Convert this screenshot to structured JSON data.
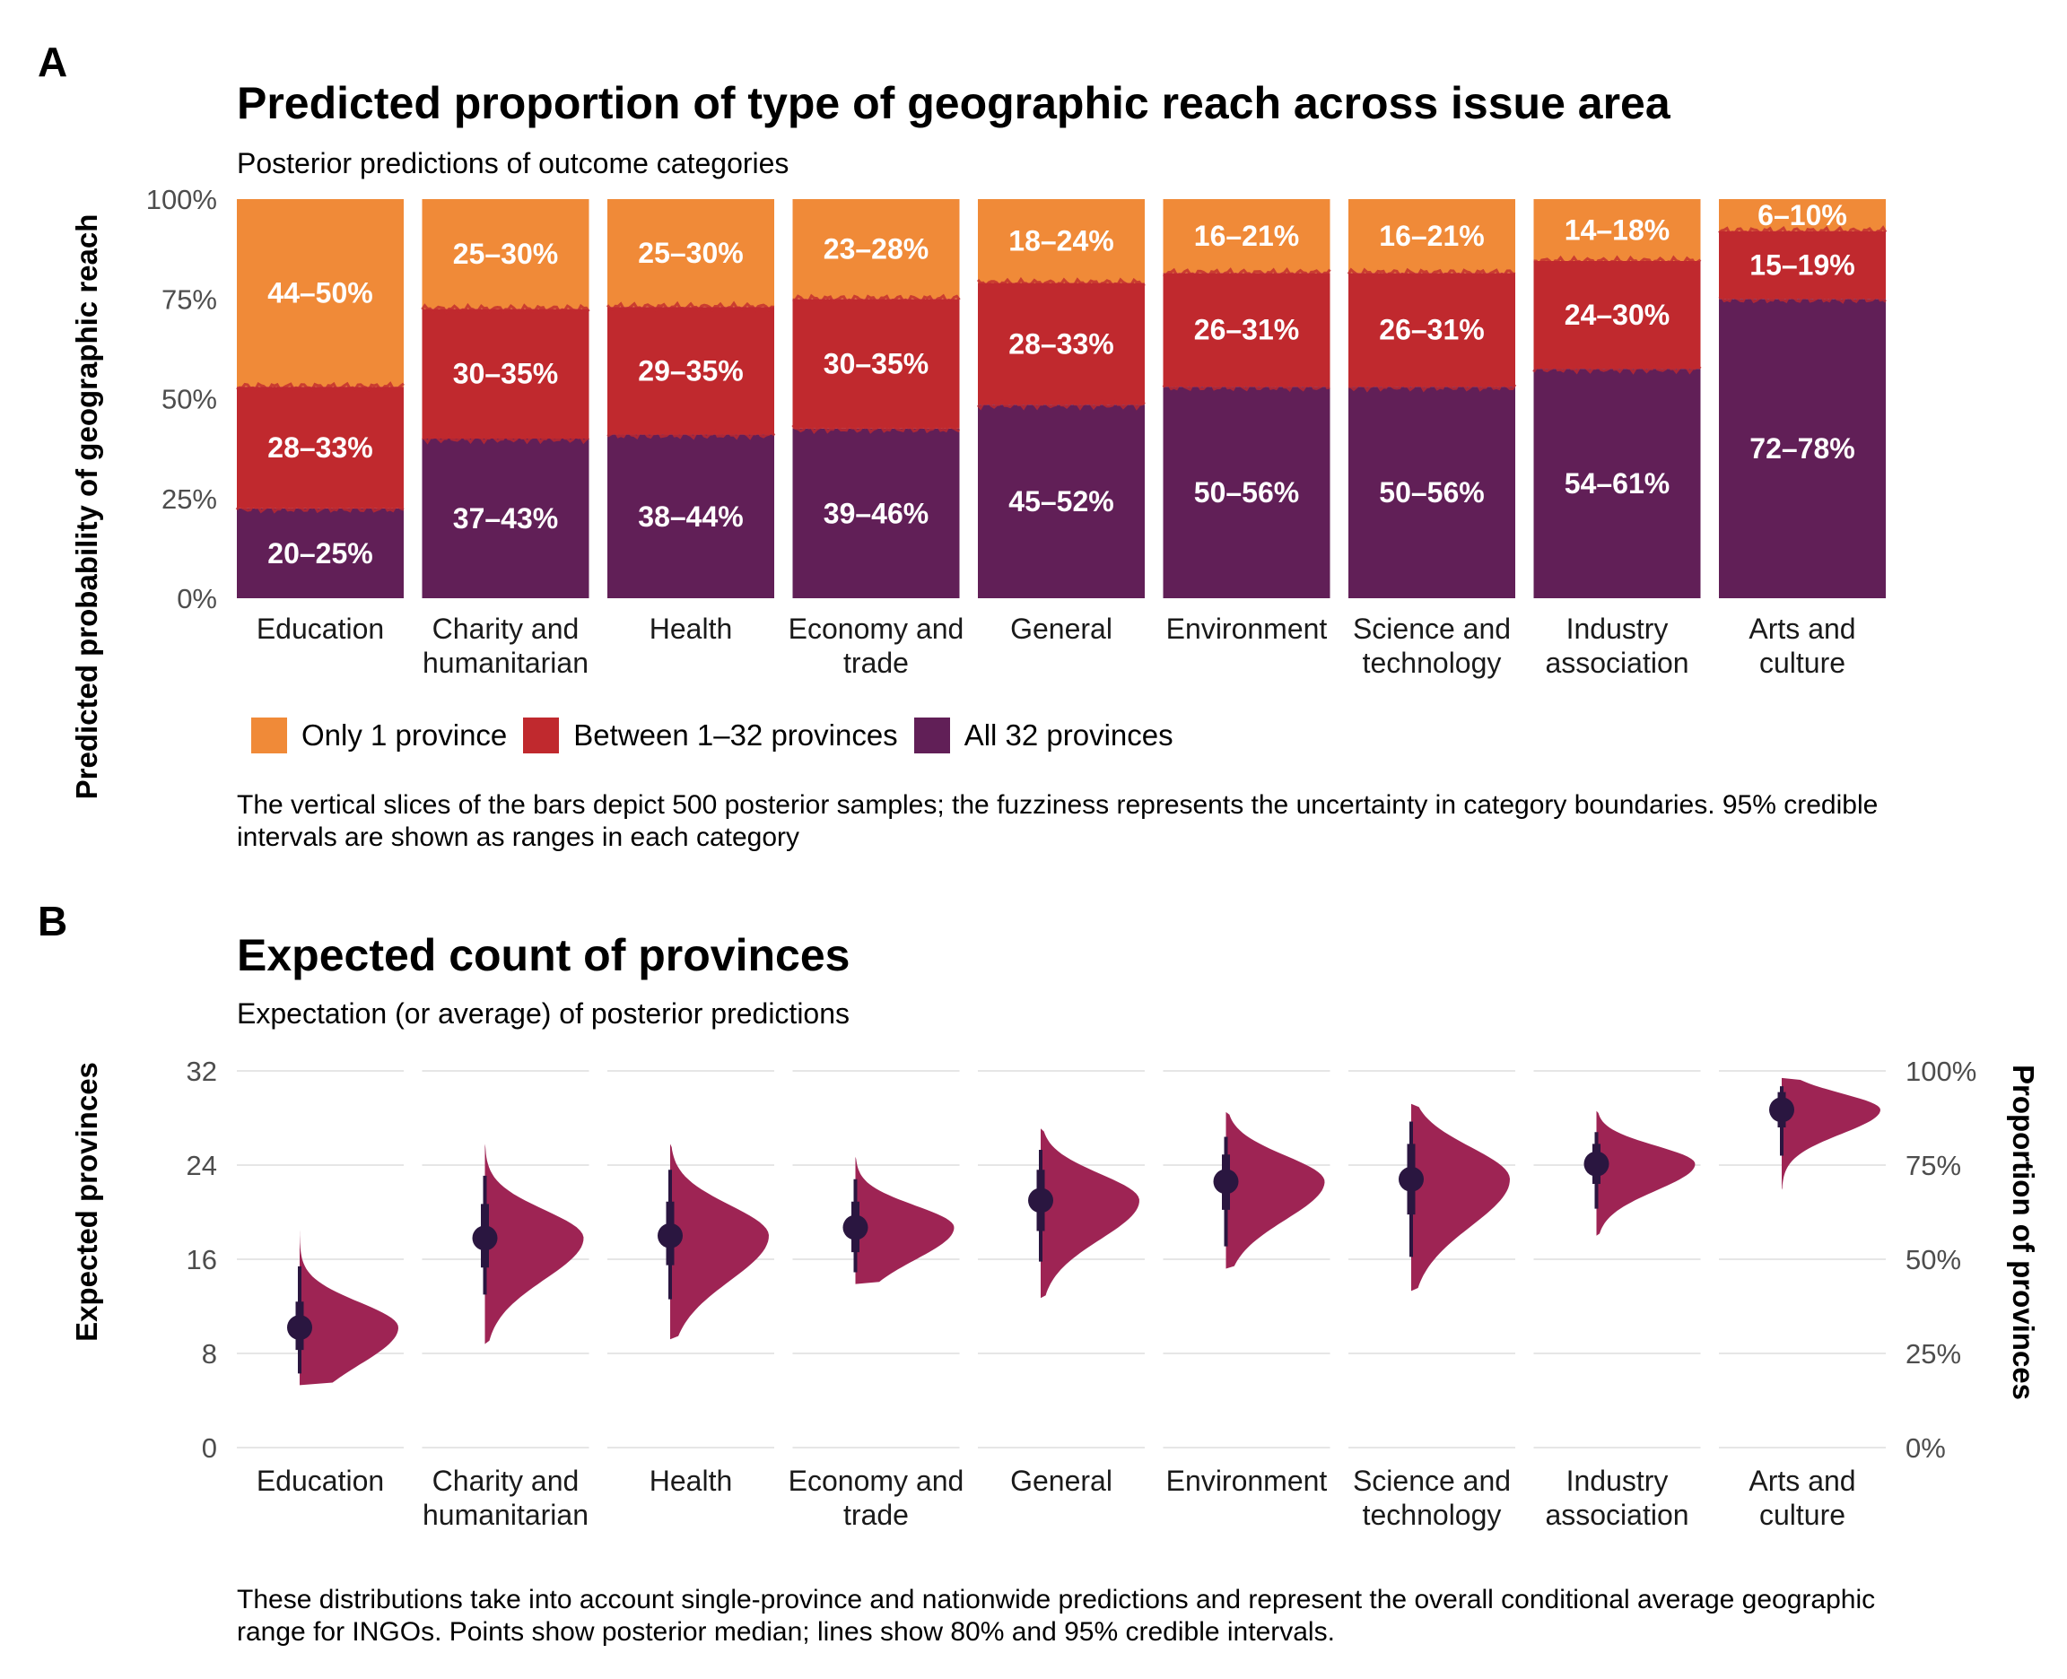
{
  "panel_a": {
    "letter": "A",
    "caption": "The vertical slices of the bars depict 500 posterior samples; the fuzziness represents the uncertainty in category boundaries. 95% credible intervals are shown as ranges in each category"
  },
  "panel_b": {
    "letter": "B",
    "caption": "These distributions take into account single-province and nationwide predictions and represent the overall conditional average geographic range for INGOs. Points show posterior median; lines show 80% and 95% credible intervals."
  },
  "colors": {
    "only_one": "#F08A38",
    "between": "#C0292E",
    "all": "#611F57",
    "violin": "#9E2454",
    "point": "#2A1640",
    "grid": "#DDDDDD"
  },
  "chart_data": [
    {
      "type": "bar",
      "stacked": true,
      "title": "Predicted proportion of type of geographic reach across issue area",
      "subtitle": "Posterior predictions of outcome categories",
      "ylabel": "Predicted probability of geographic reach",
      "ylim": [
        0,
        100
      ],
      "yticks": [
        "0%",
        "25%",
        "50%",
        "75%",
        "100%"
      ],
      "grid": false,
      "legend_position": "bottom-left",
      "categories": [
        {
          "line1": "Education",
          "line2": ""
        },
        {
          "line1": "Charity and",
          "line2": "humanitarian"
        },
        {
          "line1": "Health",
          "line2": ""
        },
        {
          "line1": "Economy and",
          "line2": "trade"
        },
        {
          "line1": "General",
          "line2": ""
        },
        {
          "line1": "Environment",
          "line2": ""
        },
        {
          "line1": "Science and",
          "line2": "technology"
        },
        {
          "line1": "Industry",
          "line2": "association"
        },
        {
          "line1": "Arts and",
          "line2": "culture"
        }
      ],
      "series": [
        {
          "name": "All 32 provinces",
          "values": [
            22.5,
            40,
            41,
            42.5,
            48.5,
            53,
            53,
            57.5,
            75
          ],
          "labels": [
            "20–25%",
            "37–43%",
            "38–44%",
            "39–46%",
            "45–52%",
            "50–56%",
            "50–56%",
            "54–61%",
            "72–78%"
          ]
        },
        {
          "name": "Between 1–32 provinces",
          "values": [
            30.5,
            32.5,
            32,
            32.5,
            30.5,
            28.5,
            28.5,
            27,
            17
          ],
          "labels": [
            "28–33%",
            "30–35%",
            "29–35%",
            "30–35%",
            "28–33%",
            "26–31%",
            "26–31%",
            "24–30%",
            "15–19%"
          ]
        },
        {
          "name": "Only 1 province",
          "values": [
            47,
            27.5,
            27,
            25,
            21,
            18.5,
            18.5,
            15.5,
            8
          ],
          "labels": [
            "44–50%",
            "25–30%",
            "25–30%",
            "23–28%",
            "18–24%",
            "16–21%",
            "16–21%",
            "14–18%",
            "6–10%"
          ]
        }
      ]
    },
    {
      "type": "violin",
      "title": "Expected count of provinces",
      "subtitle": "Expectation (or average) of posterior predictions",
      "ylabel": "Expected provinces",
      "ylabel_right": "Proportion of provinces",
      "ylim": [
        0,
        32
      ],
      "yticks": [
        "0",
        "8",
        "16",
        "24",
        "32"
      ],
      "yticks_right": [
        "0%",
        "25%",
        "50%",
        "75%",
        "100%"
      ],
      "grid": true,
      "categories": [
        {
          "line1": "Education",
          "line2": ""
        },
        {
          "line1": "Charity and",
          "line2": "humanitarian"
        },
        {
          "line1": "Health",
          "line2": ""
        },
        {
          "line1": "Economy and",
          "line2": "trade"
        },
        {
          "line1": "General",
          "line2": ""
        },
        {
          "line1": "Environment",
          "line2": ""
        },
        {
          "line1": "Science and",
          "line2": "technology"
        },
        {
          "line1": "Industry",
          "line2": "association"
        },
        {
          "line1": "Arts and",
          "line2": "culture"
        }
      ],
      "median": [
        10.2,
        17.8,
        18.0,
        18.7,
        21.0,
        22.6,
        22.8,
        24.1,
        28.7
      ],
      "ci80": [
        [
          8.3,
          12.4
        ],
        [
          15.3,
          20.7
        ],
        [
          15.5,
          20.9
        ],
        [
          16.6,
          20.9
        ],
        [
          18.4,
          23.6
        ],
        [
          20.2,
          24.9
        ],
        [
          19.8,
          25.8
        ],
        [
          22.4,
          25.8
        ],
        [
          27.2,
          30.2
        ]
      ],
      "ci95": [
        [
          6.3,
          15.4
        ],
        [
          13.0,
          23.1
        ],
        [
          12.6,
          23.6
        ],
        [
          14.9,
          22.8
        ],
        [
          15.8,
          25.3
        ],
        [
          17.1,
          26.4
        ],
        [
          16.2,
          27.7
        ],
        [
          20.3,
          26.8
        ],
        [
          24.8,
          30.7
        ]
      ],
      "range": [
        [
          5.3,
          18.5
        ],
        [
          8.8,
          25.8
        ],
        [
          9.2,
          25.8
        ],
        [
          13.9,
          24.7
        ],
        [
          12.7,
          27.1
        ],
        [
          15.2,
          28.5
        ],
        [
          13.3,
          29.2
        ],
        [
          18.0,
          28.6
        ],
        [
          21.9,
          31.4
        ]
      ]
    }
  ]
}
